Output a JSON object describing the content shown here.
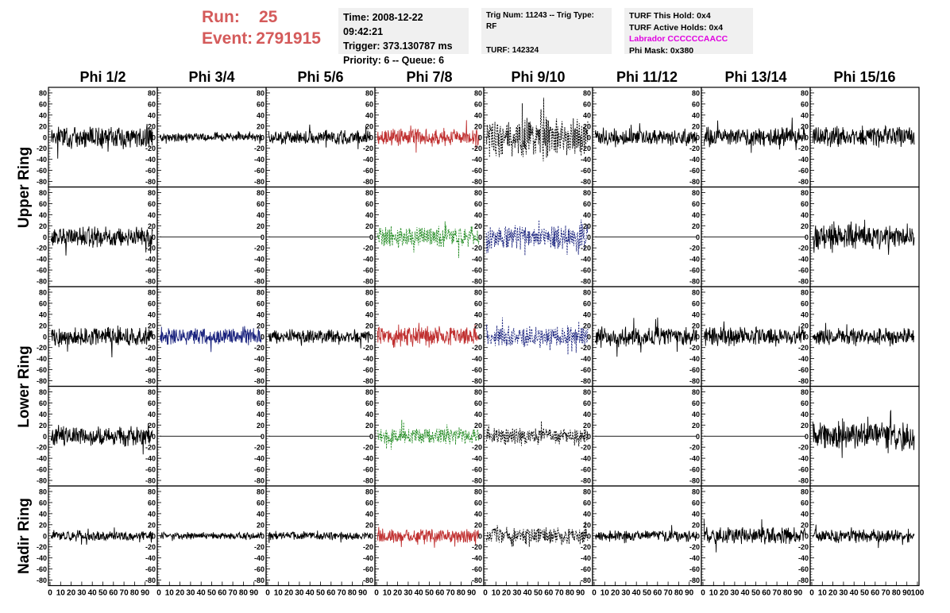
{
  "header": {
    "run_label": "Run:",
    "run_value": "25",
    "event_label": "Event:",
    "event_value": "2791915",
    "accent_color": "#d45a5a"
  },
  "info_boxes": {
    "time": "Time: 2008-12-22 09:42:21",
    "trigger": "Trigger: 373.130787 ms",
    "priority": "Priority: 6 -- Queue: 6",
    "trig_num": "Trig Num: 11243 -- Trig Type: RF",
    "turf": "TURF: 142324",
    "turf_hold": "TURF This Hold: 0x4",
    "turf_active": "TURF Active Holds: 0x4",
    "labrador": "Labrador CCCCCCAACC",
    "phi_mask": "Phi Mask: 0x380"
  },
  "chart_data": {
    "type": "line",
    "columns": [
      "Phi 1/2",
      "Phi 3/4",
      "Phi 5/6",
      "Phi 7/8",
      "Phi 9/10",
      "Phi 11/12",
      "Phi 13/14",
      "Phi 15/16"
    ],
    "rows": [
      "Upper Ring",
      "Lower Ring",
      "Nadir Ring"
    ],
    "xlim": [
      0,
      100
    ],
    "ylim": [
      -90,
      90
    ],
    "x_ticks": [
      0,
      10,
      20,
      30,
      40,
      50,
      60,
      70,
      80,
      90,
      100
    ],
    "y_ticks": [
      80,
      60,
      40,
      20,
      0,
      -20,
      -40,
      -60,
      -80
    ],
    "colors": {
      "black": "#000000",
      "red": "#c03030",
      "green": "#228b22",
      "blue": "#1a237e"
    },
    "panels": [
      [
        "normal",
        "normal",
        "normal",
        "red",
        "dashed-black",
        "normal",
        "normal",
        "normal"
      ],
      [
        "normal",
        "flat",
        "flat",
        "dashed-green",
        "dashed-blue",
        "flat",
        "flat",
        "normal"
      ],
      [
        "normal",
        "blue",
        "normal",
        "red",
        "dashed-blue",
        "normal",
        "normal",
        "normal"
      ],
      [
        "normal",
        "flat",
        "flat",
        "dashed-green",
        "dashed-black",
        "flat",
        "flat",
        "normal"
      ],
      [
        "normal",
        "normal",
        "normal",
        "red",
        "dashed-black",
        "normal",
        "normal",
        "normal"
      ]
    ],
    "amplitudes": [
      [
        15,
        6,
        10,
        12,
        28,
        12,
        14,
        15
      ],
      [
        15,
        0,
        0,
        15,
        17,
        0,
        0,
        18
      ],
      [
        14,
        12,
        10,
        14,
        15,
        14,
        14,
        12
      ],
      [
        14,
        0,
        0,
        12,
        12,
        0,
        0,
        20
      ],
      [
        8,
        5,
        6,
        10,
        12,
        8,
        12,
        10
      ]
    ]
  }
}
